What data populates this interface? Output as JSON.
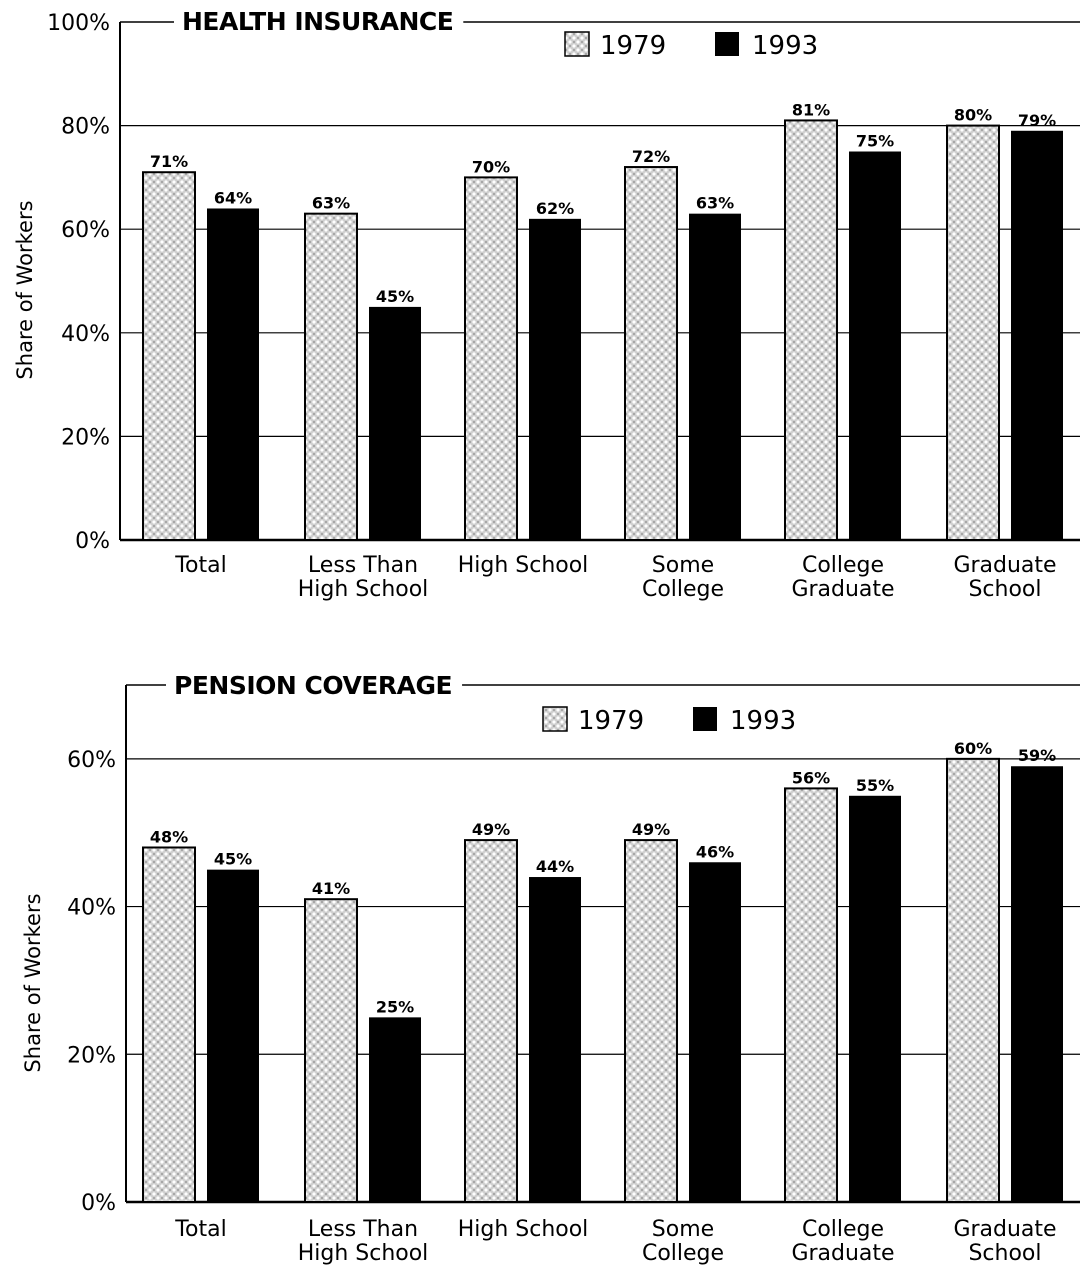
{
  "legend": {
    "series_a": "1979",
    "series_b": "1993"
  },
  "y_axis_label": "Share of Workers",
  "colors": {
    "series_a": "#c9c9c9",
    "series_b": "#000000",
    "grid": "#000000"
  },
  "chart_data": [
    {
      "type": "bar",
      "title": "HEALTH INSURANCE",
      "ylabel": "Share of Workers",
      "ylim": [
        0,
        100
      ],
      "yticks": [
        "0%",
        "20%",
        "40%",
        "60%",
        "80%",
        "100%"
      ],
      "ytick_values": [
        0,
        20,
        40,
        60,
        80,
        100
      ],
      "categories": [
        [
          "Total"
        ],
        [
          "Less Than",
          "High School"
        ],
        [
          "High School"
        ],
        [
          "Some",
          "College"
        ],
        [
          "College",
          "Graduate"
        ],
        [
          "Graduate",
          "School"
        ]
      ],
      "series": [
        {
          "name": "1979",
          "values": [
            71,
            63,
            70,
            72,
            81,
            80
          ],
          "labels": [
            "71%",
            "63%",
            "70%",
            "72%",
            "81%",
            "80%"
          ]
        },
        {
          "name": "1993",
          "values": [
            64,
            45,
            62,
            63,
            75,
            79
          ],
          "labels": [
            "64%",
            "45%",
            "62%",
            "63%",
            "75%",
            "79%"
          ]
        }
      ],
      "grid": true,
      "legend_position": "top-center"
    },
    {
      "type": "bar",
      "title": "PENSION COVERAGE",
      "ylabel": "Share of Workers",
      "ylim": [
        0,
        70
      ],
      "yticks": [
        "0%",
        "20%",
        "40%",
        "60%"
      ],
      "ytick_values": [
        0,
        20,
        40,
        60
      ],
      "categories": [
        [
          "Total"
        ],
        [
          "Less Than",
          "High School"
        ],
        [
          "High School"
        ],
        [
          "Some",
          "College"
        ],
        [
          "College",
          "Graduate"
        ],
        [
          "Graduate",
          "School"
        ]
      ],
      "series": [
        {
          "name": "1979",
          "values": [
            48,
            41,
            49,
            49,
            56,
            60
          ],
          "labels": [
            "48%",
            "41%",
            "49%",
            "49%",
            "56%",
            "60%"
          ]
        },
        {
          "name": "1993",
          "values": [
            45,
            25,
            44,
            46,
            55,
            59
          ],
          "labels": [
            "45%",
            "25%",
            "44%",
            "46%",
            "55%",
            "59%"
          ]
        }
      ],
      "grid": true,
      "legend_position": "top-center"
    }
  ]
}
